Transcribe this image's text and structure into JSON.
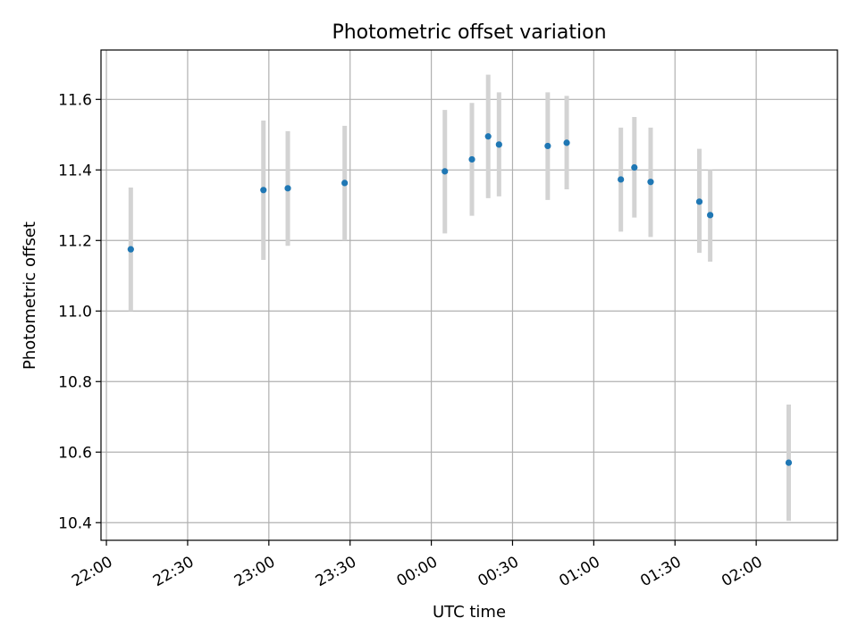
{
  "chart_data": {
    "type": "scatter",
    "title": "Photometric offset variation",
    "xlabel": "UTC time",
    "ylabel": "Photometric offset",
    "x_tick_labels": [
      "22:00",
      "22:30",
      "23:00",
      "23:30",
      "00:00",
      "00:30",
      "01:00",
      "01:30",
      "02:00"
    ],
    "y_tick_labels": [
      "10.4",
      "10.6",
      "10.8",
      "11.0",
      "11.2",
      "11.4",
      "11.6"
    ],
    "x_ticks": [
      "22:00",
      "22:30",
      "23:00",
      "23:30",
      "00:00",
      "00:30",
      "01:00",
      "01:30",
      "02:00"
    ],
    "y_ticks": [
      10.4,
      10.6,
      10.8,
      11.0,
      11.2,
      11.4,
      11.6
    ],
    "xlim": [
      "21:58",
      "02:30"
    ],
    "ylim": [
      10.35,
      11.74
    ],
    "grid": true,
    "points": [
      {
        "x": "22:09",
        "y": 11.175,
        "err_low": 11.0,
        "err_high": 11.35
      },
      {
        "x": "22:58",
        "y": 11.343,
        "err_low": 11.145,
        "err_high": 11.54
      },
      {
        "x": "23:07",
        "y": 11.348,
        "err_low": 11.185,
        "err_high": 11.51
      },
      {
        "x": "23:28",
        "y": 11.363,
        "err_low": 11.2,
        "err_high": 11.525
      },
      {
        "x": "00:05",
        "y": 11.396,
        "err_low": 11.22,
        "err_high": 11.57
      },
      {
        "x": "00:15",
        "y": 11.43,
        "err_low": 11.27,
        "err_high": 11.59
      },
      {
        "x": "00:21",
        "y": 11.495,
        "err_low": 11.32,
        "err_high": 11.67
      },
      {
        "x": "00:25",
        "y": 11.472,
        "err_low": 11.325,
        "err_high": 11.62
      },
      {
        "x": "00:43",
        "y": 11.468,
        "err_low": 11.315,
        "err_high": 11.62
      },
      {
        "x": "00:50",
        "y": 11.477,
        "err_low": 11.345,
        "err_high": 11.61
      },
      {
        "x": "01:10",
        "y": 11.373,
        "err_low": 11.225,
        "err_high": 11.52
      },
      {
        "x": "01:15",
        "y": 11.407,
        "err_low": 11.265,
        "err_high": 11.55
      },
      {
        "x": "01:21",
        "y": 11.366,
        "err_low": 11.21,
        "err_high": 11.52
      },
      {
        "x": "01:39",
        "y": 11.31,
        "err_low": 11.165,
        "err_high": 11.46
      },
      {
        "x": "01:43",
        "y": 11.272,
        "err_low": 11.14,
        "err_high": 11.4
      },
      {
        "x": "02:12",
        "y": 10.57,
        "err_low": 10.405,
        "err_high": 10.735
      }
    ],
    "colors": {
      "point": "#1f77b4",
      "errorbar": "#d3d3d3",
      "grid": "#b0b0b0",
      "axes": "#000000"
    }
  }
}
